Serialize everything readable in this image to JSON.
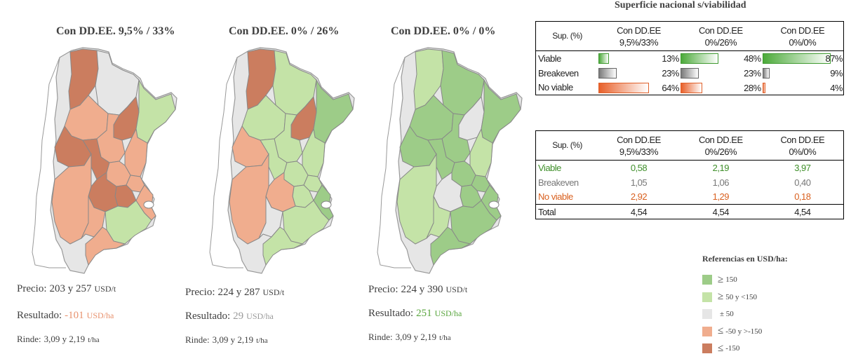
{
  "colors": {
    "ge150": "#9dcc88",
    "ge50": "#c4e3a7",
    "pm50": "#e6e6e6",
    "le50": "#f0ad8e",
    "le150": "#cb7d5f"
  },
  "maps": [
    {
      "title": "Con DD.EE. 9,5% / 33%",
      "precio_label": "Precio:",
      "precio_value": "203 y 257",
      "precio_unit": "USD/t",
      "resultado_label": "Resultado:",
      "resultado_value": "-101",
      "resultado_unit": "USD/ha",
      "rinde_label": "Rinde:",
      "rinde_value": "3,09 y 2,19",
      "rinde_unit": "t/ha",
      "regions": [
        "le150",
        "pm50",
        "le150",
        "ge50",
        "le50",
        "le50",
        "le50",
        "le150",
        "le150",
        "le50",
        "le50",
        "le150",
        "le150",
        "le50",
        "le50",
        "ge50",
        "le50",
        "le50"
      ]
    },
    {
      "title": "Con DD.EE. 0% / 26%",
      "precio_label": "Precio:",
      "precio_value": "224 y 287",
      "precio_unit": "USD/t",
      "resultado_label": "Resultado:",
      "resultado_value": "29",
      "resultado_unit": "USD/ha",
      "rinde_label": "Rinde:",
      "rinde_value": "3,09 y 2,19",
      "rinde_unit": "t/ha",
      "regions": [
        "le150",
        "ge50",
        "le150",
        "ge150",
        "ge50",
        "ge50",
        "ge50",
        "le50",
        "ge50",
        "ge50",
        "ge50",
        "ge50",
        "le50",
        "le50",
        "pm50",
        "ge50",
        "ge150",
        "ge50"
      ]
    },
    {
      "title": "Con DD.EE. 0% / 0%",
      "precio_label": "Precio:",
      "precio_value": "224 y 390",
      "precio_unit": "USD/t",
      "resultado_label": "Resultado:",
      "resultado_value": "251",
      "resultado_unit": "USD/ha",
      "rinde_label": "Rinde:",
      "rinde_value": "3,09 y 2,19",
      "rinde_unit": "t/ha",
      "regions": [
        "ge50",
        "ge150",
        "pm50",
        "ge150",
        "ge150",
        "ge150",
        "ge50",
        "ge150",
        "ge150",
        "ge150",
        "ge150",
        "ge150",
        "pm50",
        "ge50",
        "ge50",
        "ge150",
        "ge150",
        "ge150"
      ]
    }
  ],
  "table1": {
    "title": "Superficie nacional s/viabilidad",
    "header_label": "Sup. (%)",
    "columns": [
      {
        "line1": "Con DD.EE",
        "line2": "9,5%/33%"
      },
      {
        "line1": "Con DD.EE",
        "line2": "0%/26%"
      },
      {
        "line1": "Con DD.EE",
        "line2": "0%/0%"
      }
    ],
    "rows": [
      {
        "label": "Viable",
        "kind": "v",
        "values": [
          13,
          48,
          87
        ],
        "labels": [
          "13%",
          "48%",
          "87%"
        ]
      },
      {
        "label": "Breakeven",
        "kind": "b",
        "values": [
          23,
          23,
          9
        ],
        "labels": [
          "23%",
          "23%",
          "9%"
        ]
      },
      {
        "label": "No viable",
        "kind": "n",
        "values": [
          64,
          28,
          4
        ],
        "labels": [
          "64%",
          "28%",
          "4%"
        ]
      }
    ]
  },
  "table2": {
    "header_label": "Sup. (%)",
    "columns": [
      {
        "line1": "Con DD.EE",
        "line2": "9,5%/33%"
      },
      {
        "line1": "Con DD.EE",
        "line2": "0%/26%"
      },
      {
        "line1": "Con DD.EE",
        "line2": "0%/0%"
      }
    ],
    "rows": [
      {
        "label": "Viable",
        "values": [
          "0,58",
          "2,19",
          "3,97"
        ]
      },
      {
        "label": "Breakeven",
        "values": [
          "1,05",
          "1,06",
          "0,40"
        ]
      },
      {
        "label": "No viable",
        "values": [
          "2,92",
          "1,29",
          "0,18"
        ]
      },
      {
        "label": "Total",
        "values": [
          "4,54",
          "4,54",
          "4,54"
        ]
      }
    ]
  },
  "legend": {
    "title": "Referencias en USD/ha:",
    "items": [
      {
        "symbol": "≥",
        "text": "150"
      },
      {
        "symbol": "≥",
        "text": "50 y <150"
      },
      {
        "symbol": "",
        "text": "± 50"
      },
      {
        "symbol": "≤",
        "text": "-50 y >-150"
      },
      {
        "symbol": "≤",
        "text": "-150"
      }
    ]
  },
  "chart_data": {
    "type": "table",
    "title": "Superficie nacional s/viabilidad",
    "categories": [
      "Con DD.EE 9,5%/33%",
      "Con DD.EE 0%/26%",
      "Con DD.EE 0%/0%"
    ],
    "series": [
      {
        "name": "Viable",
        "percent": [
          13,
          48,
          87
        ],
        "values": [
          0.58,
          2.19,
          3.97
        ]
      },
      {
        "name": "Breakeven",
        "percent": [
          23,
          23,
          9
        ],
        "values": [
          1.05,
          1.06,
          0.4
        ]
      },
      {
        "name": "No viable",
        "percent": [
          64,
          28,
          4
        ],
        "values": [
          2.92,
          1.29,
          0.18
        ]
      },
      {
        "name": "Total",
        "values": [
          4.54,
          4.54,
          4.54
        ]
      }
    ],
    "resultado_usd_ha": [
      -101,
      29,
      251
    ],
    "precio_usd_t": [
      [
        "203",
        "257"
      ],
      [
        "224",
        "287"
      ],
      [
        "224",
        "390"
      ]
    ],
    "rinde_t_ha": [
      [
        "3,09",
        "2,19"
      ],
      [
        "3,09",
        "2,19"
      ],
      [
        "3,09",
        "2,19"
      ]
    ]
  }
}
